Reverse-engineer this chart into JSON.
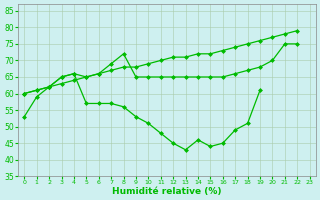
{
  "line_top_x": [
    0,
    1,
    2,
    3,
    4,
    5,
    6,
    7,
    8,
    9,
    10,
    11,
    12,
    13,
    14,
    15,
    16,
    17,
    18,
    19,
    20,
    21,
    22
  ],
  "line_top_y": [
    60,
    61,
    62,
    63,
    64,
    65,
    66,
    67,
    68,
    68,
    69,
    70,
    71,
    71,
    72,
    72,
    73,
    74,
    75,
    76,
    77,
    78,
    79
  ],
  "line_mid_x": [
    0,
    1,
    2,
    3,
    4,
    5,
    6,
    7,
    8,
    9,
    10,
    11,
    12,
    13,
    14,
    15,
    16,
    17,
    18,
    19,
    20,
    21,
    22
  ],
  "line_mid_y": [
    60,
    61,
    62,
    65,
    66,
    65,
    66,
    69,
    72,
    65,
    65,
    65,
    65,
    65,
    65,
    65,
    65,
    66,
    67,
    68,
    70,
    75,
    75
  ],
  "line_bot_x": [
    0,
    1,
    2,
    3,
    4,
    5,
    6,
    7,
    8,
    9,
    10,
    11,
    12,
    13,
    14,
    15,
    16,
    17,
    18,
    19
  ],
  "line_bot_y": [
    53,
    59,
    62,
    65,
    66,
    57,
    57,
    57,
    56,
    53,
    51,
    48,
    45,
    43,
    46,
    44,
    45,
    49,
    51,
    61
  ],
  "ylim": [
    35,
    87
  ],
  "yticks": [
    35,
    40,
    45,
    50,
    55,
    60,
    65,
    70,
    75,
    80,
    85
  ],
  "xlim_min": -0.5,
  "xlim_max": 23.5,
  "xticks": [
    0,
    1,
    2,
    3,
    4,
    5,
    6,
    7,
    8,
    9,
    10,
    11,
    12,
    13,
    14,
    15,
    16,
    17,
    18,
    19,
    20,
    21,
    22,
    23
  ],
  "xlabel": "Humidité relative (%)",
  "line_color": "#00bb00",
  "bg_color": "#cef0f0",
  "grid_color": "#aaccaa",
  "spine_color": "#888888"
}
